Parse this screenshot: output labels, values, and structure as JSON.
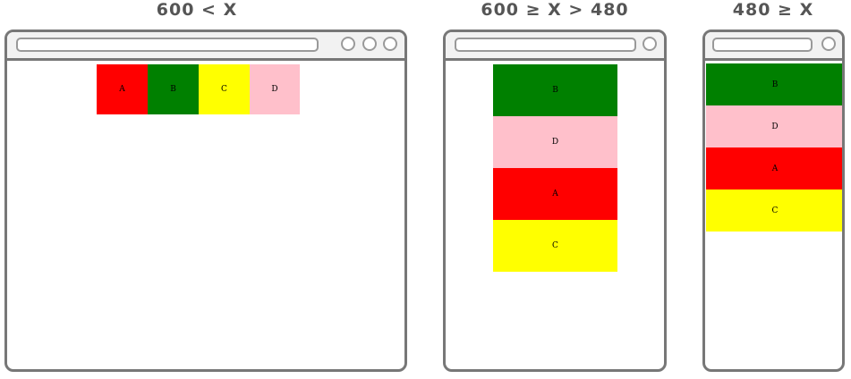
{
  "panels": [
    {
      "heading": "600 < X",
      "boxes": [
        {
          "label": "A",
          "color": "#ff0000"
        },
        {
          "label": "B",
          "color": "#008000"
        },
        {
          "label": "C",
          "color": "#ffff00"
        },
        {
          "label": "D",
          "color": "#ffc0cb"
        }
      ]
    },
    {
      "heading": "600 ≥ X > 480",
      "boxes": [
        {
          "label": "B",
          "color": "#008000"
        },
        {
          "label": "D",
          "color": "#ffc0cb"
        },
        {
          "label": "A",
          "color": "#ff0000"
        },
        {
          "label": "C",
          "color": "#ffff00"
        }
      ]
    },
    {
      "heading": "480 ≥ X",
      "boxes": [
        {
          "label": "B",
          "color": "#008000"
        },
        {
          "label": "D",
          "color": "#ffc0cb"
        },
        {
          "label": "A",
          "color": "#ff0000"
        },
        {
          "label": "C",
          "color": "#ffff00"
        }
      ]
    }
  ],
  "colors": {
    "frame": "#777777",
    "toolbar": "#f2f2f2",
    "heading": "#555555"
  }
}
